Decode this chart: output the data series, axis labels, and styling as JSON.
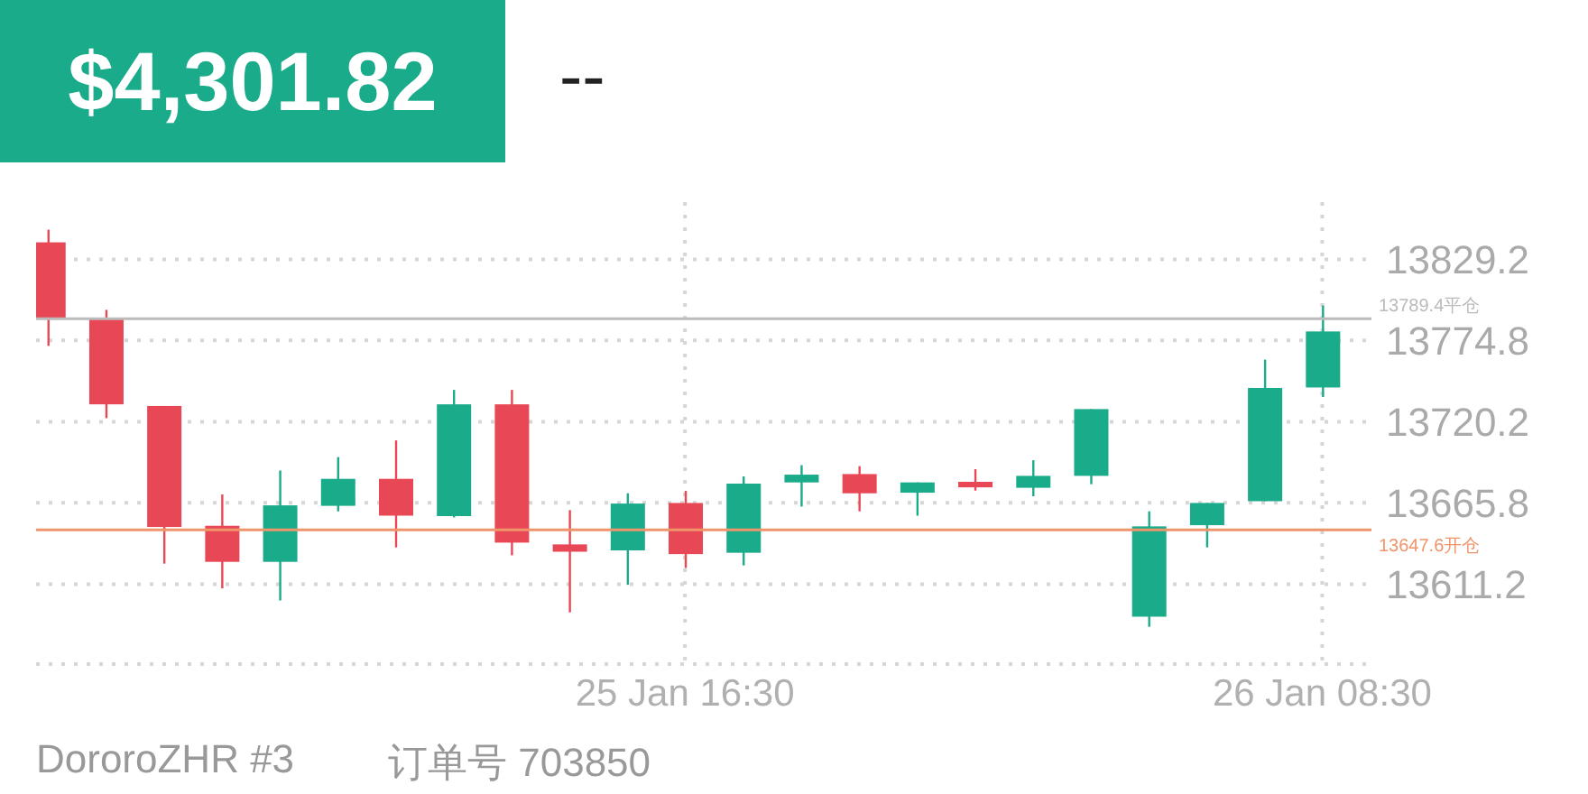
{
  "chart_data": {
    "type": "candlestick",
    "title": "$4,301.82",
    "subtitle": "--",
    "categories": [
      null,
      null,
      null,
      null,
      null,
      null,
      null,
      null,
      null,
      null,
      null,
      "25 Jan 16:30",
      null,
      null,
      null,
      null,
      null,
      null,
      null,
      null,
      null,
      null,
      "26 Jan 08:30"
    ],
    "ohlc": [
      [
        13840.6,
        13849.1,
        13771.1,
        13789.7
      ],
      [
        13789.7,
        13795.3,
        13722.6,
        13731.9
      ],
      [
        13730.8,
        13730.8,
        13625.0,
        13649.6
      ],
      [
        13650.4,
        13671.4,
        13608.4,
        13626.2
      ],
      [
        13626.2,
        13687.5,
        13600.3,
        13664.1
      ],
      [
        13663.8,
        13696.5,
        13660.1,
        13681.9
      ],
      [
        13681.9,
        13707.7,
        13635.9,
        13657.2
      ],
      [
        13656.9,
        13741.6,
        13656.0,
        13731.9
      ],
      [
        13731.9,
        13741.6,
        13630.6,
        13639.1
      ],
      [
        13637.9,
        13660.9,
        13592.3,
        13633.0
      ],
      [
        13633.9,
        13672.2,
        13610.8,
        13665.3
      ],
      [
        13665.7,
        13673.8,
        13622.1,
        13631.4
      ],
      [
        13632.3,
        13683.5,
        13623.8,
        13678.7
      ],
      [
        13679.5,
        13691.1,
        13663.3,
        13684.7
      ],
      [
        13685.1,
        13690.4,
        13660.1,
        13672.2
      ],
      [
        13672.6,
        13679.5,
        13657.2,
        13679.5
      ],
      [
        13679.9,
        13688.4,
        13674.0,
        13676.2
      ],
      [
        13675.9,
        13694.4,
        13670.2,
        13683.9
      ],
      [
        13683.9,
        13728.7,
        13678.3,
        13728.7
      ],
      [
        13589.4,
        13660.1,
        13582.6,
        13650.0
      ],
      [
        13650.8,
        13665.7,
        13635.9,
        13665.7
      ],
      [
        13666.9,
        13761.9,
        13666.9,
        13742.9
      ],
      [
        13743.2,
        13798.2,
        13736.8,
        13780.8
      ]
    ],
    "colors": [
      "#e84856",
      "#e84856",
      "#e84856",
      "#e84856",
      "#1aab8a",
      "#1aab8a",
      "#e84856",
      "#1aab8a",
      "#e84856",
      "#e84856",
      "#1aab8a",
      "#e84856",
      "#1aab8a",
      "#1aab8a",
      "#e84856",
      "#1aab8a",
      "#e84856",
      "#1aab8a",
      "#1aab8a",
      "#1aab8a",
      "#1aab8a",
      "#1aab8a",
      "#1aab8a"
    ],
    "ylim": [
      13557.6,
      13867.6
    ],
    "yticks": [
      13611.2,
      13665.8,
      13720.2,
      13774.8,
      13829.2
    ],
    "grid": true,
    "ref_lines": [
      {
        "axis": "y",
        "value": 13789.4,
        "label": "13789.4平仓",
        "color": "#bbbbbb"
      },
      {
        "axis": "y",
        "value": 13647.6,
        "label": "13647.6开仓",
        "color": "#f0956b"
      }
    ],
    "annotations": [
      "DororoZHR #3",
      "订单号 703850"
    ]
  }
}
